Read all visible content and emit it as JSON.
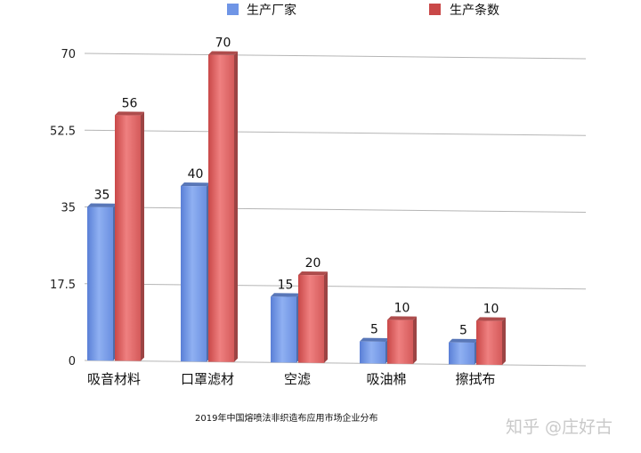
{
  "chart_data": {
    "type": "bar",
    "categories": [
      "吸音材料",
      "口罩滤材",
      "空滤",
      "吸油棉",
      "擦拭布"
    ],
    "series": [
      {
        "name": "生产厂家",
        "values": [
          35,
          40,
          15,
          5,
          5
        ],
        "color": "#6f95e6"
      },
      {
        "name": "生产条数",
        "values": [
          56,
          70,
          20,
          10,
          10
        ],
        "color": "#d95f5f"
      }
    ],
    "ylim": [
      0,
      70
    ],
    "yticks": [
      0,
      17.5,
      35,
      52.5,
      70
    ],
    "ytick_labels": [
      "0",
      "17.5",
      "35",
      "52.5",
      "70"
    ],
    "grid": true,
    "legend_position": "top-center",
    "caption": "2019年中国熔喷法非织造布应用市场企业分布"
  },
  "watermark": "知乎 @庄好古"
}
